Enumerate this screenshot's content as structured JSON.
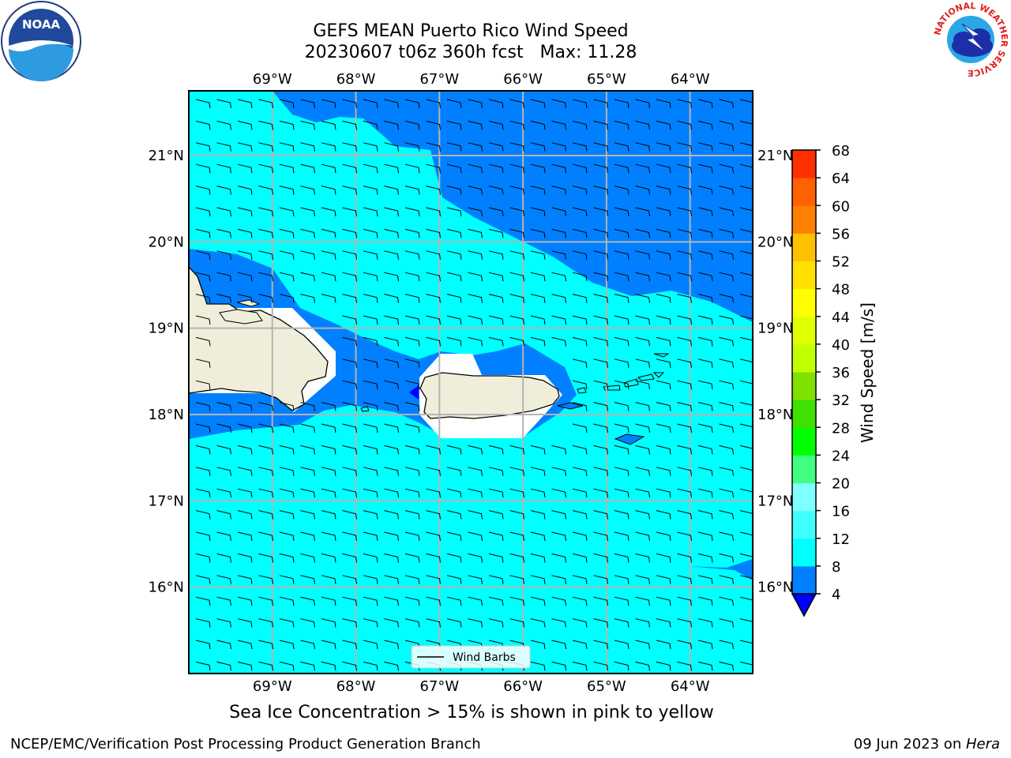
{
  "title": {
    "line1": "GEFS MEAN Puerto Rico Wind Speed",
    "line2": "20230607 t06z 360h fcst   Max: 11.28"
  },
  "subtitle": "Sea Ice Concentration > 15% is shown in pink to yellow",
  "footer": {
    "left": "NCEP/EMC/Verification Post Processing Product Generation Branch",
    "date": "09 Jun 2023 on ",
    "machine": "Hera"
  },
  "logos": {
    "left": {
      "name": "NOAA",
      "text": "NOAA"
    },
    "right": {
      "name": "National Weather Service",
      "ring_text": "NATIONAL WEATHER SERVICE"
    }
  },
  "map": {
    "lon_range": [
      -70.0,
      -63.25
    ],
    "lat_range": [
      15.0,
      21.75
    ],
    "lon_ticks": [
      {
        "value": -69,
        "label": "69°W"
      },
      {
        "value": -68,
        "label": "68°W"
      },
      {
        "value": -67,
        "label": "67°W"
      },
      {
        "value": -66,
        "label": "66°W"
      },
      {
        "value": -65,
        "label": "65°W"
      },
      {
        "value": -64,
        "label": "64°W"
      }
    ],
    "lat_ticks": [
      {
        "value": 16,
        "label": "16°N"
      },
      {
        "value": 17,
        "label": "17°N"
      },
      {
        "value": 18,
        "label": "18°N"
      },
      {
        "value": 19,
        "label": "19°N"
      },
      {
        "value": 20,
        "label": "20°N"
      },
      {
        "value": 21,
        "label": "21°N"
      }
    ],
    "legend_label": "Wind Barbs",
    "colors": {
      "ocean_light": "#00ffff",
      "ocean_dark": "#0080ff",
      "land": "#efeedb",
      "grid": "#b4b4b4",
      "barb": "#000000"
    }
  },
  "colorbar": {
    "label": "Wind Speed [m/s]",
    "ticks": [
      "4",
      "8",
      "12",
      "16",
      "20",
      "24",
      "28",
      "32",
      "36",
      "40",
      "44",
      "48",
      "52",
      "56",
      "60",
      "64",
      "68"
    ],
    "colors": [
      "#0080ff",
      "#00ffff",
      "#40ffff",
      "#80ffff",
      "#40ff80",
      "#00ff00",
      "#40e000",
      "#80e000",
      "#c0ff00",
      "#e0ff00",
      "#ffff00",
      "#ffe000",
      "#ffc000",
      "#ff8000",
      "#ff6000",
      "#ff3000"
    ],
    "under_color": "#0000ff",
    "top_color": "#ff0000"
  }
}
